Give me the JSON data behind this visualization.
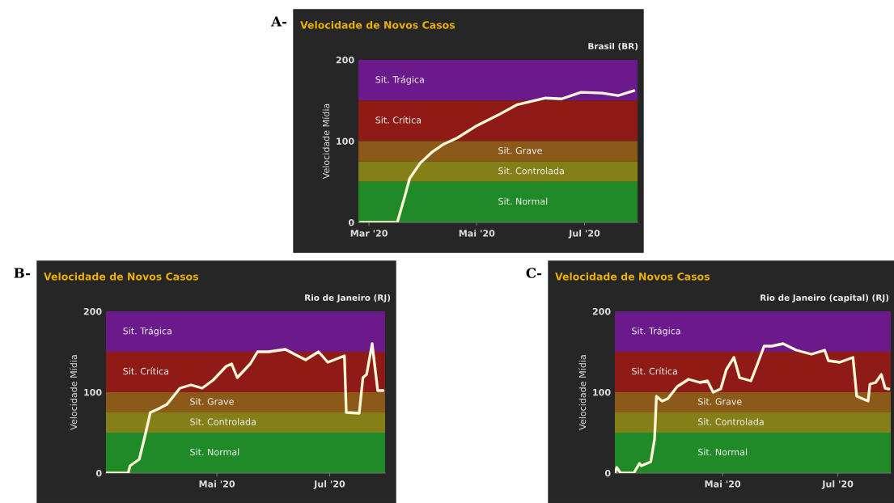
{
  "chart_data": [
    {
      "type": "line",
      "title": "Velocidade de Novos Casos",
      "subtitle": "Brasil (BR)",
      "ylabel": "Velocidade Mídia",
      "annotations": [
        "A-"
      ],
      "x": [
        "2020-02-25",
        "2020-03-17",
        "2020-03-21",
        "2020-03-24",
        "2020-03-30",
        "2020-04-06",
        "2020-04-12",
        "2020-04-20",
        "2020-05-01",
        "2020-05-13",
        "2020-05-24",
        "2020-06-09",
        "2020-06-18",
        "2020-06-29",
        "2020-07-11",
        "2020-07-20",
        "2020-07-29"
      ],
      "series": [
        {
          "color": "#fff6d8",
          "values": [
            0,
            0,
            30,
            54,
            73,
            87,
            96,
            104,
            119,
            132,
            145,
            153,
            152,
            160,
            159,
            156,
            162
          ]
        }
      ],
      "xlim": [
        "2020-02-24",
        "2020-07-31"
      ],
      "xticks": [
        {
          "value": "2020-03-01",
          "label": "Mar '20"
        },
        {
          "value": "2020-05-01",
          "label": "Mai '20"
        },
        {
          "value": "2020-07-01",
          "label": "Jul '20"
        }
      ],
      "ylim": [
        0,
        200
      ],
      "yticks": [
        0,
        100,
        200
      ],
      "grid": false,
      "legend": false,
      "bands": [
        {
          "axis": "y",
          "from": 150,
          "to": 200,
          "label": "Sit. Trágica",
          "color": "#6b1a8c"
        },
        {
          "axis": "y",
          "from": 100,
          "to": 150,
          "label": "Sit. Crítica",
          "color": "#8e1b16"
        },
        {
          "axis": "y",
          "from": 75,
          "to": 100,
          "label": "Sit. Grave",
          "color": "#8b5a18"
        },
        {
          "axis": "y",
          "from": 50,
          "to": 75,
          "label": "Sit. Controlada",
          "color": "#857f18"
        },
        {
          "axis": "y",
          "from": 0,
          "to": 50,
          "label": "Sit. Normal",
          "color": "#1f8a26"
        }
      ]
    },
    {
      "type": "line",
      "title": "Velocidade de Novos Casos",
      "subtitle": "Rio de Janeiro (RJ)",
      "ylabel": "Velocidade Mídia",
      "annotations": [
        "B-"
      ],
      "x": [
        "2020-03-02",
        "2020-03-14",
        "2020-03-15",
        "2020-03-20",
        "2020-03-23",
        "2020-03-26",
        "2020-03-30",
        "2020-04-04",
        "2020-04-11",
        "2020-04-17",
        "2020-04-23",
        "2020-04-29",
        "2020-05-06",
        "2020-05-09",
        "2020-05-12",
        "2020-05-19",
        "2020-05-23",
        "2020-05-29",
        "2020-06-07",
        "2020-06-12",
        "2020-06-18",
        "2020-06-25",
        "2020-06-30",
        "2020-07-09",
        "2020-07-10",
        "2020-07-17",
        "2020-07-19",
        "2020-07-21",
        "2020-07-24",
        "2020-07-27",
        "2020-07-30"
      ],
      "series": [
        {
          "color": "#fff6d8",
          "values": [
            0,
            0,
            9,
            17,
            45,
            75,
            79,
            85,
            105,
            109,
            105,
            115,
            132,
            135,
            118,
            135,
            150,
            150,
            153,
            147,
            140,
            150,
            137,
            145,
            75,
            74,
            118,
            122,
            160,
            102,
            102
          ]
        }
      ],
      "xlim": [
        "2020-03-02",
        "2020-07-31"
      ],
      "xticks": [
        {
          "value": "2020-05-01",
          "label": "Mai '20"
        },
        {
          "value": "2020-07-01",
          "label": "Jul '20"
        }
      ],
      "ylim": [
        0,
        200
      ],
      "yticks": [
        0,
        100,
        200
      ],
      "grid": false,
      "legend": false,
      "bands": [
        {
          "axis": "y",
          "from": 150,
          "to": 200,
          "label": "Sit. Trágica",
          "color": "#6b1a8c"
        },
        {
          "axis": "y",
          "from": 100,
          "to": 150,
          "label": "Sit. Crítica",
          "color": "#8e1b16"
        },
        {
          "axis": "y",
          "from": 75,
          "to": 100,
          "label": "Sit. Grave",
          "color": "#8b5a18"
        },
        {
          "axis": "y",
          "from": 50,
          "to": 75,
          "label": "Sit. Controlada",
          "color": "#857f18"
        },
        {
          "axis": "y",
          "from": 0,
          "to": 50,
          "label": "Sit. Normal",
          "color": "#1f8a26"
        }
      ]
    },
    {
      "type": "line",
      "title": "Velocidade de Novos Casos",
      "subtitle": "Rio de Janeiro (capital) (RJ)",
      "ylabel": "Velocidade Mídia",
      "annotations": [
        "C-"
      ],
      "x": [
        "2020-03-05",
        "2020-03-06",
        "2020-03-08",
        "2020-03-15",
        "2020-03-18",
        "2020-03-19",
        "2020-03-24",
        "2020-03-26",
        "2020-03-27",
        "2020-03-30",
        "2020-04-02",
        "2020-04-07",
        "2020-04-13",
        "2020-04-19",
        "2020-04-23",
        "2020-04-26",
        "2020-04-30",
        "2020-05-03",
        "2020-05-07",
        "2020-05-10",
        "2020-05-16",
        "2020-05-19",
        "2020-05-23",
        "2020-05-27",
        "2020-06-02",
        "2020-06-09",
        "2020-06-17",
        "2020-06-24",
        "2020-06-26",
        "2020-07-02",
        "2020-07-09",
        "2020-07-11",
        "2020-07-17",
        "2020-07-18",
        "2020-07-21",
        "2020-07-24",
        "2020-07-26",
        "2020-07-28"
      ],
      "series": [
        {
          "color": "#fff6d8",
          "values": [
            0,
            7,
            0,
            0,
            12,
            9,
            14,
            42,
            95,
            89,
            92,
            107,
            116,
            112,
            114,
            100,
            104,
            128,
            143,
            118,
            114,
            132,
            157,
            157,
            160,
            152,
            147,
            152,
            139,
            137,
            143,
            95,
            89,
            110,
            112,
            122,
            105,
            104
          ]
        }
      ],
      "xlim": [
        "2020-03-05",
        "2020-07-29"
      ],
      "xticks": [
        {
          "value": "2020-05-01",
          "label": "Mai '20"
        },
        {
          "value": "2020-07-01",
          "label": "Jul '20"
        }
      ],
      "ylim": [
        0,
        200
      ],
      "yticks": [
        0,
        100,
        200
      ],
      "grid": false,
      "legend": false,
      "bands": [
        {
          "axis": "y",
          "from": 150,
          "to": 200,
          "label": "Sit. Trágica",
          "color": "#6b1a8c"
        },
        {
          "axis": "y",
          "from": 100,
          "to": 150,
          "label": "Sit. Crítica",
          "color": "#8e1b16"
        },
        {
          "axis": "y",
          "from": 75,
          "to": 100,
          "label": "Sit. Grave",
          "color": "#8b5a18"
        },
        {
          "axis": "y",
          "from": 50,
          "to": 75,
          "label": "Sit. Controlada",
          "color": "#857f18"
        },
        {
          "axis": "y",
          "from": 0,
          "to": 50,
          "label": "Sit. Normal",
          "color": "#1f8a26"
        }
      ]
    }
  ]
}
